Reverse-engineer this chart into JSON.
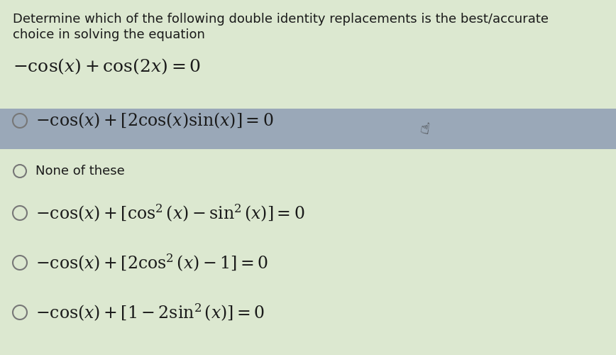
{
  "title_line1": "Determine which of the following double identity replacements is the best/accurate",
  "title_line2": "choice in solving the equation",
  "equation": "$-\\cos(x) + \\cos(2x) = 0$",
  "options": [
    {
      "label": "$-\\cos(x) + [2\\cos(x)\\sin(x)] = 0$",
      "selected": true,
      "small": false
    },
    {
      "label": "None of these",
      "selected": false,
      "small": true
    },
    {
      "label": "$-\\cos(x) + [\\cos^2(x) - \\sin^2(x)] = 0$",
      "selected": false,
      "small": false
    },
    {
      "label": "$-\\cos(x) + [2\\cos^2(x) - 1] = 0$",
      "selected": false,
      "small": false
    },
    {
      "label": "$-\\cos(x) + [1 - 2\\sin^2(x)] = 0$",
      "selected": false,
      "small": false
    }
  ],
  "bg_color": "#dce8d0",
  "selected_bg": "#9aa8b8",
  "text_color": "#1a1a1a",
  "circle_color": "#777777",
  "title_fontsize": 13.0,
  "equation_fontsize": 18,
  "option_fontsize": 17,
  "small_fontsize": 13,
  "fig_width": 8.68,
  "fig_height": 5.0,
  "dpi": 100
}
